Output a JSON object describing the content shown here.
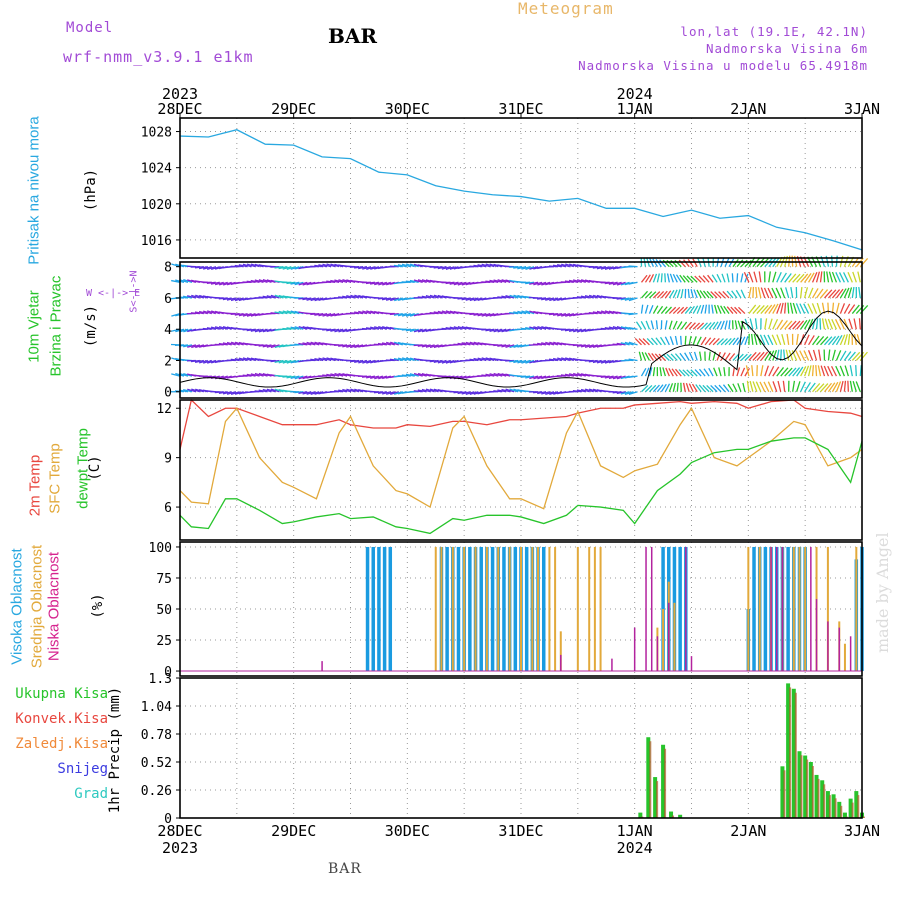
{
  "header": {
    "model_label": "Model",
    "model_name": "wrf-nmm_v3.9.1 e1km",
    "station": "BAR",
    "chart_kind": "Meteogram",
    "lonlat": "lon,lat (19.1E, 42.1N)",
    "elevation": "Nadmorska Visina 6m",
    "model_elevation": "Nadmorska Visina u modelu 65.4918m"
  },
  "footer": {
    "station": "BAR",
    "credit": "made by Angel"
  },
  "time_axis": {
    "top_years": [
      {
        "label": "2023",
        "at": 0
      },
      {
        "label": "2024",
        "at": 4
      }
    ],
    "labels": [
      "28DEC",
      "29DEC",
      "30DEC",
      "31DEC",
      "1JAN",
      "2JAN",
      "3JAN"
    ],
    "bottom_years": [
      {
        "label": "2023",
        "at": 0
      },
      {
        "label": "2024",
        "at": 4
      }
    ]
  },
  "panels": {
    "pressure": {
      "ylabel": "Pritisak na nivou mora",
      "unit": "(hPa)",
      "ticks": [
        "1016",
        "1020",
        "1024",
        "1028"
      ],
      "color": "#29a8e0"
    },
    "wind": {
      "ylabel1": "10m Vjetar",
      "ylabel2": "Brzina i Pravac",
      "unit": "(m/s)",
      "compass": "W <-|-> E",
      "compass_ns": "S<-|->N",
      "ticks": [
        "0",
        "2",
        "4",
        "6",
        "8"
      ]
    },
    "temperature": {
      "ylabel1": "2m Temp",
      "ylabel2": "SFC Temp",
      "ylabel3": "dewpt Temp",
      "unit": "(C)",
      "ticks": [
        "6",
        "9",
        "12"
      ],
      "colors": {
        "t2m": "#e8473f",
        "sfc": "#e2a93b",
        "dew": "#27c42b"
      }
    },
    "clouds": {
      "ylabel1": "Visoka Oblacnost",
      "ylabel2": "Srednja Oblacnost",
      "ylabel3": "Niska Oblacnost",
      "unit": "(%)",
      "ticks": [
        "0",
        "25",
        "50",
        "75",
        "100"
      ],
      "colors": {
        "high": "#1a9be0",
        "mid": "#e2a93b",
        "low": "#b3239e"
      }
    },
    "precip": {
      "ylabel": "1hr Precip (mm)",
      "ticks": [
        "0",
        "0.26",
        "0.52",
        "0.78",
        "1.04",
        "1.3"
      ],
      "legend": [
        {
          "label": "Ukupna Kisa",
          "color": "#27c42b"
        },
        {
          "label": "Konvek.Kisa",
          "color": "#e8473f"
        },
        {
          "label": "Zaledj.Kisa",
          "color": "#f08a3a"
        },
        {
          "label": "Snijeg",
          "color": "#3c3ce0"
        },
        {
          "label": "Grad",
          "color": "#2ec9c0"
        }
      ]
    }
  },
  "chart_data": [
    {
      "type": "line",
      "title": "Pritisak na nivou mora",
      "ylabel": "(hPa)",
      "ylim": [
        1014,
        1029.5
      ],
      "x_days": [
        0,
        0.25,
        0.5,
        0.75,
        1,
        1.25,
        1.5,
        1.75,
        2,
        2.25,
        2.5,
        2.75,
        3,
        3.25,
        3.5,
        3.75,
        4,
        4.25,
        4.5,
        4.75,
        5,
        5.25,
        5.5,
        5.75,
        6
      ],
      "series": [
        {
          "name": "pressure",
          "values": [
            1027.5,
            1027.4,
            1028.2,
            1026.6,
            1026.5,
            1025.2,
            1025.0,
            1023.5,
            1023.2,
            1022.0,
            1021.4,
            1021.0,
            1020.8,
            1020.3,
            1020.6,
            1019.5,
            1019.5,
            1018.6,
            1019.3,
            1018.4,
            1018.7,
            1017.4,
            1016.8,
            1015.9,
            1014.9
          ]
        }
      ]
    },
    {
      "type": "line",
      "title": "Temp",
      "ylabel": "(C)",
      "ylim": [
        4,
        12.5
      ],
      "x_days": [
        0,
        0.1,
        0.25,
        0.4,
        0.5,
        0.7,
        0.9,
        1.0,
        1.2,
        1.4,
        1.5,
        1.7,
        1.9,
        2.0,
        2.2,
        2.4,
        2.5,
        2.7,
        2.9,
        3.0,
        3.2,
        3.4,
        3.5,
        3.7,
        3.9,
        4.0,
        4.2,
        4.4,
        4.5,
        4.7,
        4.9,
        5.0,
        5.2,
        5.4,
        5.5,
        5.7,
        5.9,
        6.0
      ],
      "series": [
        {
          "name": "2m Temp",
          "values": [
            9.5,
            12.5,
            11.5,
            12.0,
            12.0,
            11.5,
            11.0,
            11.0,
            11.0,
            11.3,
            11.0,
            10.8,
            10.8,
            11.0,
            10.9,
            11.2,
            11.2,
            11.0,
            11.3,
            11.3,
            11.4,
            11.5,
            11.7,
            12.0,
            12.0,
            12.2,
            12.3,
            12.4,
            12.3,
            12.4,
            12.3,
            12.0,
            12.4,
            12.5,
            12.0,
            11.8,
            11.7,
            11.5
          ]
        },
        {
          "name": "SFC Temp",
          "values": [
            7.0,
            6.3,
            6.2,
            11.2,
            12.0,
            9.0,
            7.5,
            7.2,
            6.5,
            10.5,
            11.5,
            8.5,
            7.0,
            6.8,
            6.0,
            10.8,
            11.5,
            8.5,
            6.5,
            6.5,
            5.9,
            10.5,
            11.8,
            8.5,
            7.8,
            8.2,
            8.6,
            11.0,
            12.0,
            9.0,
            8.5,
            9.0,
            10.0,
            11.2,
            11.0,
            8.5,
            9.0,
            9.5
          ]
        },
        {
          "name": "dewpt Temp",
          "values": [
            5.5,
            4.8,
            4.7,
            6.5,
            6.5,
            5.8,
            5.0,
            5.1,
            5.4,
            5.6,
            5.3,
            5.4,
            4.8,
            4.7,
            4.4,
            5.3,
            5.2,
            5.5,
            5.5,
            5.4,
            5.0,
            5.5,
            6.1,
            6.0,
            5.8,
            5.0,
            7.0,
            8.0,
            8.7,
            9.3,
            9.5,
            9.5,
            10.0,
            10.2,
            10.2,
            9.5,
            7.5,
            10.0
          ]
        }
      ]
    },
    {
      "type": "bar",
      "title": "1hr Precip",
      "ylabel": "(mm)",
      "ylim": [
        0,
        1.3
      ],
      "x_days": [
        4.05,
        4.12,
        4.18,
        4.25,
        4.32,
        4.4,
        5.3,
        5.35,
        5.4,
        5.45,
        5.5,
        5.55,
        5.6,
        5.65,
        5.7,
        5.75,
        5.8,
        5.85,
        5.9,
        5.95,
        6.0
      ],
      "series": [
        {
          "name": "Ukupna Kisa",
          "values": [
            0.05,
            0.75,
            0.38,
            0.68,
            0.06,
            0.03,
            0.48,
            1.25,
            1.2,
            0.62,
            0.58,
            0.52,
            0.4,
            0.35,
            0.25,
            0.22,
            0.15,
            0.05,
            0.18,
            0.25,
            0.05
          ]
        }
      ]
    },
    {
      "type": "bar",
      "title": "Oblacnost",
      "ylabel": "(%)",
      "ylim": [
        0,
        100
      ],
      "series": [
        {
          "name": "Visoka Oblacnost",
          "x_days": [
            1.65,
            1.7,
            1.75,
            1.8,
            1.85,
            2.3,
            2.35,
            2.4,
            2.45,
            2.5,
            2.55,
            2.6,
            2.65,
            2.7,
            2.75,
            2.8,
            2.85,
            2.9,
            2.95,
            3.0,
            3.05,
            3.1,
            3.15,
            3.2,
            4.25,
            4.3,
            4.35,
            4.4,
            4.45,
            5.0,
            5.05,
            5.1,
            5.15,
            5.2,
            5.25,
            5.3,
            5.35,
            5.4,
            5.45,
            5.5,
            5.95,
            6.0
          ],
          "values": [
            100,
            100,
            100,
            100,
            100,
            100,
            100,
            100,
            100,
            100,
            100,
            100,
            100,
            100,
            100,
            100,
            100,
            100,
            100,
            100,
            100,
            100,
            100,
            100,
            100,
            100,
            100,
            100,
            100,
            50,
            100,
            100,
            100,
            100,
            100,
            100,
            100,
            100,
            100,
            100,
            90,
            100
          ]
        },
        {
          "name": "Srednja Oblacnost",
          "x_days": [
            2.25,
            2.3,
            2.4,
            2.5,
            2.6,
            2.7,
            2.8,
            2.9,
            3.0,
            3.1,
            3.15,
            3.25,
            3.3,
            3.35,
            3.5,
            3.6,
            3.65,
            3.7,
            4.2,
            4.25,
            4.3,
            4.35,
            5.0,
            5.1,
            5.2,
            5.3,
            5.4,
            5.45,
            5.5,
            5.6,
            5.7,
            5.8,
            5.85,
            5.95
          ],
          "values": [
            100,
            100,
            100,
            100,
            100,
            100,
            100,
            100,
            100,
            100,
            100,
            100,
            100,
            32,
            100,
            100,
            100,
            100,
            35,
            50,
            72,
            55,
            100,
            100,
            100,
            100,
            100,
            100,
            100,
            100,
            100,
            40,
            22,
            100
          ]
        },
        {
          "name": "Niska Oblacnost",
          "x_days": [
            1.25,
            3.35,
            3.8,
            4.0,
            4.1,
            4.15,
            4.2,
            4.3,
            4.45,
            4.5,
            5.2,
            5.25,
            5.3,
            5.55,
            5.6,
            5.7,
            5.8,
            5.9
          ],
          "values": [
            8,
            13,
            10,
            35,
            100,
            100,
            28,
            55,
            100,
            12,
            100,
            100,
            100,
            100,
            58,
            40,
            35,
            28
          ]
        }
      ]
    }
  ]
}
